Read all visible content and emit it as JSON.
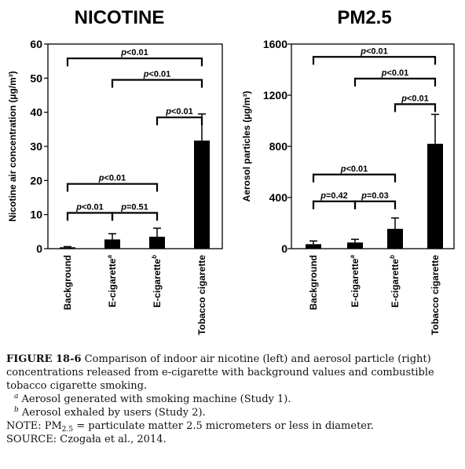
{
  "chart_data": [
    {
      "type": "bar",
      "title": "NICOTINE",
      "ylabel": "Nicotine air concentration (µg/m³)",
      "categories": [
        "Background",
        "E-cigarette",
        "E-cigarette",
        "Tobacco cigarette"
      ],
      "category_superscripts": [
        "",
        "a",
        "b",
        ""
      ],
      "values": [
        0.4,
        2.7,
        3.5,
        31.7
      ],
      "errors": [
        0.2,
        1.7,
        2.5,
        7.8
      ],
      "ylim": [
        0,
        60
      ],
      "yticks": [
        0,
        10,
        20,
        30,
        40,
        50,
        60
      ],
      "bar_color": "#000000",
      "comparisons": [
        {
          "from": 2,
          "to": 3,
          "label": "p<0.01",
          "level": 38.5
        },
        {
          "from": 1,
          "to": 3,
          "label": "p<0.01",
          "level": 49.5
        },
        {
          "from": 0,
          "to": 3,
          "label": "p<0.01",
          "level": 55.8
        },
        {
          "from": 0,
          "to": 1,
          "label": "p<0.01",
          "level": 10.5
        },
        {
          "from": 1,
          "to": 2,
          "label": "p=0.51",
          "level": 10.5
        },
        {
          "from": 0,
          "to": 2,
          "label": "p<0.01",
          "level": 19.0
        }
      ]
    },
    {
      "type": "bar",
      "title": "PM2.5",
      "ylabel": "Aerosol particles (µg/m³)",
      "categories": [
        "Background",
        "E-cigarette",
        "E-cigarette",
        "Tobacco cigarette"
      ],
      "category_superscripts": [
        "",
        "a",
        "b",
        ""
      ],
      "values": [
        35,
        48,
        155,
        820
      ],
      "errors": [
        25,
        25,
        85,
        230
      ],
      "ylim": [
        0,
        1600
      ],
      "yticks": [
        0,
        400,
        800,
        1200,
        1600
      ],
      "bar_color": "#000000",
      "comparisons": [
        {
          "from": 2,
          "to": 3,
          "label": "p<0.01",
          "level": 1130
        },
        {
          "from": 1,
          "to": 3,
          "label": "p<0.01",
          "level": 1330
        },
        {
          "from": 0,
          "to": 3,
          "label": "p<0.01",
          "level": 1500
        },
        {
          "from": 0,
          "to": 1,
          "label": "p=0.42",
          "level": 370
        },
        {
          "from": 1,
          "to": 2,
          "label": "p=0.03",
          "level": 370
        },
        {
          "from": 0,
          "to": 2,
          "label": "p<0.01",
          "level": 580
        }
      ]
    }
  ],
  "caption": {
    "figure_label": "FIGURE 18-6",
    "text": "Comparison of indoor air nicotine (left) and aerosol particle (right) concentrations released from e-cigarette with background values and combustible tobacco cigarette smoking.",
    "line1": "Comparison of indoor air nicotine (left) and aerosol particle (right)",
    "line2": "concentrations released from e-cigarette with background values and combustible",
    "line3": "tobacco cigarette smoking.",
    "footnote_a_mark": "a",
    "footnote_a": "Aerosol generated with smoking machine (Study 1).",
    "footnote_b_mark": "b",
    "footnote_b": "Aerosol exhaled by users (Study 2).",
    "note_prefix": "NOTE: PM",
    "note_sub": "2.5",
    "note_rest": " = particulate matter 2.5 micrometers or less in diameter.",
    "source": "SOURCE: Czogała et al., 2014."
  }
}
